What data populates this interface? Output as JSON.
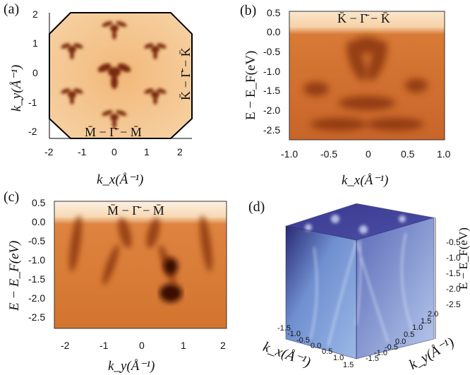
{
  "panels": {
    "a": {
      "label": "(a)",
      "ylabel": "k_y(Å⁻¹)",
      "xlabel": "k_x(Å⁻¹)",
      "yticks": [
        "2",
        "1",
        "0",
        "-1",
        "-2"
      ],
      "xticks": [
        "-2",
        "-1",
        "0",
        "1",
        "2"
      ],
      "path_vertical": "K̄ − Γ̄ − K̄",
      "path_horizontal": "M̄ − Γ̄ − M̄"
    },
    "b": {
      "label": "(b)",
      "ylabel": "E − E_F(eV)",
      "xlabel": "k_x(Å⁻¹)",
      "title": "K̄ − Γ̄ − K̄",
      "yticks": [
        "0.5",
        "0.0",
        "-0.5",
        "-1.0",
        "-1.5",
        "-2.0",
        "-2.5"
      ],
      "xticks": [
        "-1.0",
        "-0.5",
        "0",
        "0.5",
        "1.0"
      ]
    },
    "c": {
      "label": "(c)",
      "ylabel": "E − E_F(eV)",
      "xlabel": "k_y(Å⁻¹)",
      "title": "M̄ − Γ̄ − M̄",
      "yticks": [
        "0.5",
        "0.0",
        "-0.5",
        "-1.0",
        "-1.5",
        "-2.0",
        "-2.5"
      ],
      "xticks": [
        "-2",
        "-1",
        "0",
        "1",
        "2"
      ]
    },
    "d": {
      "label": "(d)",
      "zlabel": "E − E_F(eV)",
      "xlabel": "k_x(Å⁻¹)",
      "ylabel": "k_y(Å⁻¹)",
      "zticks": [
        "-0.5",
        "-1.0",
        "-1.5",
        "-2.0",
        "-2.5"
      ],
      "xticks": [
        "-1.5",
        "-1.0",
        "-0.5",
        "0.0",
        "0.5",
        "1.0",
        "1.5"
      ],
      "yticks": [
        "-1.5",
        "-1.0",
        "-0.5",
        "0.0",
        "0.5",
        "1.0",
        "1.5",
        "2.0"
      ]
    }
  },
  "colors": {
    "arpes_light": "#f6c894",
    "arpes_mid": "#d9712a",
    "arpes_dark": "#6a2408",
    "cube_dark": "#2b2a7a",
    "cube_mid": "#5560b8",
    "cube_light": "#c9d6f0"
  }
}
